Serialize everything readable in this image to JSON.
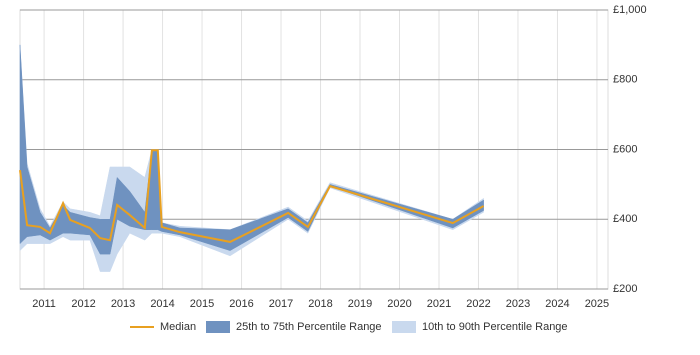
{
  "chart_data": {
    "type": "band-line",
    "x": [
      2010.39,
      2010.57,
      2010.9,
      2011.15,
      2011.48,
      2011.66,
      2012.16,
      2012.42,
      2012.67,
      2012.85,
      2013.17,
      2013.55,
      2013.73,
      2013.88,
      2013.98,
      2014.44,
      2015.71,
      2017.18,
      2017.68,
      2018.24,
      2021.35,
      2022.13
    ],
    "series": [
      {
        "name": "10th to 90th Percentile Range",
        "color": "#c9d9ee",
        "high": [
          900,
          560,
          430,
          380,
          450,
          430,
          420,
          410,
          550,
          550,
          550,
          520,
          600,
          600,
          390,
          380,
          370,
          435,
          395,
          505,
          400,
          460
        ],
        "low": [
          310,
          330,
          330,
          330,
          350,
          340,
          340,
          250,
          250,
          300,
          360,
          340,
          360,
          360,
          360,
          350,
          295,
          400,
          360,
          490,
          370,
          420
        ]
      },
      {
        "name": "25th to 75th Percentile Range",
        "color": "#6f92c0",
        "high": [
          900,
          550,
          420,
          375,
          440,
          420,
          405,
          400,
          400,
          520,
          480,
          420,
          600,
          600,
          390,
          375,
          370,
          430,
          390,
          500,
          400,
          455
        ],
        "low": [
          330,
          350,
          355,
          340,
          360,
          360,
          355,
          300,
          300,
          400,
          380,
          370,
          370,
          370,
          365,
          355,
          310,
          405,
          365,
          495,
          375,
          425
        ]
      },
      {
        "name": "Median",
        "color": "#e8a020",
        "values": [
          541,
          383,
          378,
          360,
          446,
          398,
          375,
          346,
          340,
          441,
          412,
          375,
          598,
          598,
          378,
          363,
          335,
          418,
          378,
          495,
          389,
          438
        ]
      }
    ],
    "xlim": [
      2010.39,
      2025.28
    ],
    "xticks": [
      2011,
      2012,
      2013,
      2014,
      2015,
      2016,
      2017,
      2018,
      2019,
      2020,
      2021,
      2022,
      2023,
      2024,
      2025
    ],
    "ylim": [
      200,
      1000
    ],
    "yticks": [
      {
        "value": 200,
        "label": "£200"
      },
      {
        "value": 400,
        "label": "£400"
      },
      {
        "value": 600,
        "label": "£600"
      },
      {
        "value": 800,
        "label": "£800"
      },
      {
        "value": 1000,
        "label": "£1,000"
      }
    ],
    "grid": true
  }
}
